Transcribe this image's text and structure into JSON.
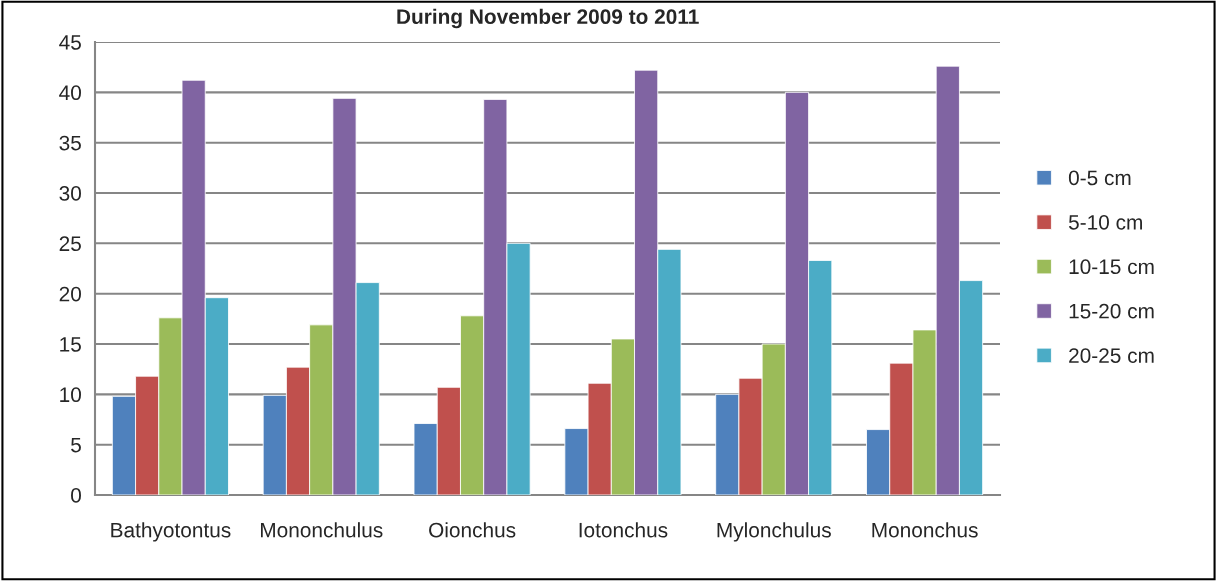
{
  "chart_data": {
    "type": "bar",
    "title": "During November 2009 to 2011",
    "categories": [
      "Bathyotontus",
      "Mononchulus",
      "Oionchus",
      "Iotonchus",
      "Mylonchulus",
      "Mononchus"
    ],
    "series": [
      {
        "name": "0-5 cm",
        "color": "#4f81bd",
        "values": [
          9.8,
          9.9,
          7.1,
          6.6,
          10.0,
          6.5
        ]
      },
      {
        "name": "5-10 cm",
        "color": "#c0504d",
        "values": [
          11.8,
          12.7,
          10.7,
          11.1,
          11.6,
          13.1
        ]
      },
      {
        "name": "10-15 cm",
        "color": "#9bbb59",
        "values": [
          17.6,
          16.9,
          17.8,
          15.5,
          15.0,
          16.4
        ]
      },
      {
        "name": "15-20 cm",
        "color": "#8064a2",
        "values": [
          41.2,
          39.4,
          39.3,
          42.2,
          40.0,
          42.6
        ]
      },
      {
        "name": "20-25 cm",
        "color": "#4bacc6",
        "values": [
          19.6,
          21.1,
          25.0,
          24.4,
          23.3,
          21.3
        ]
      }
    ],
    "ylim": [
      0,
      45
    ],
    "yticks": [
      0,
      5,
      10,
      15,
      20,
      25,
      30,
      35,
      40,
      45
    ],
    "grid": "y",
    "legend": "right"
  }
}
